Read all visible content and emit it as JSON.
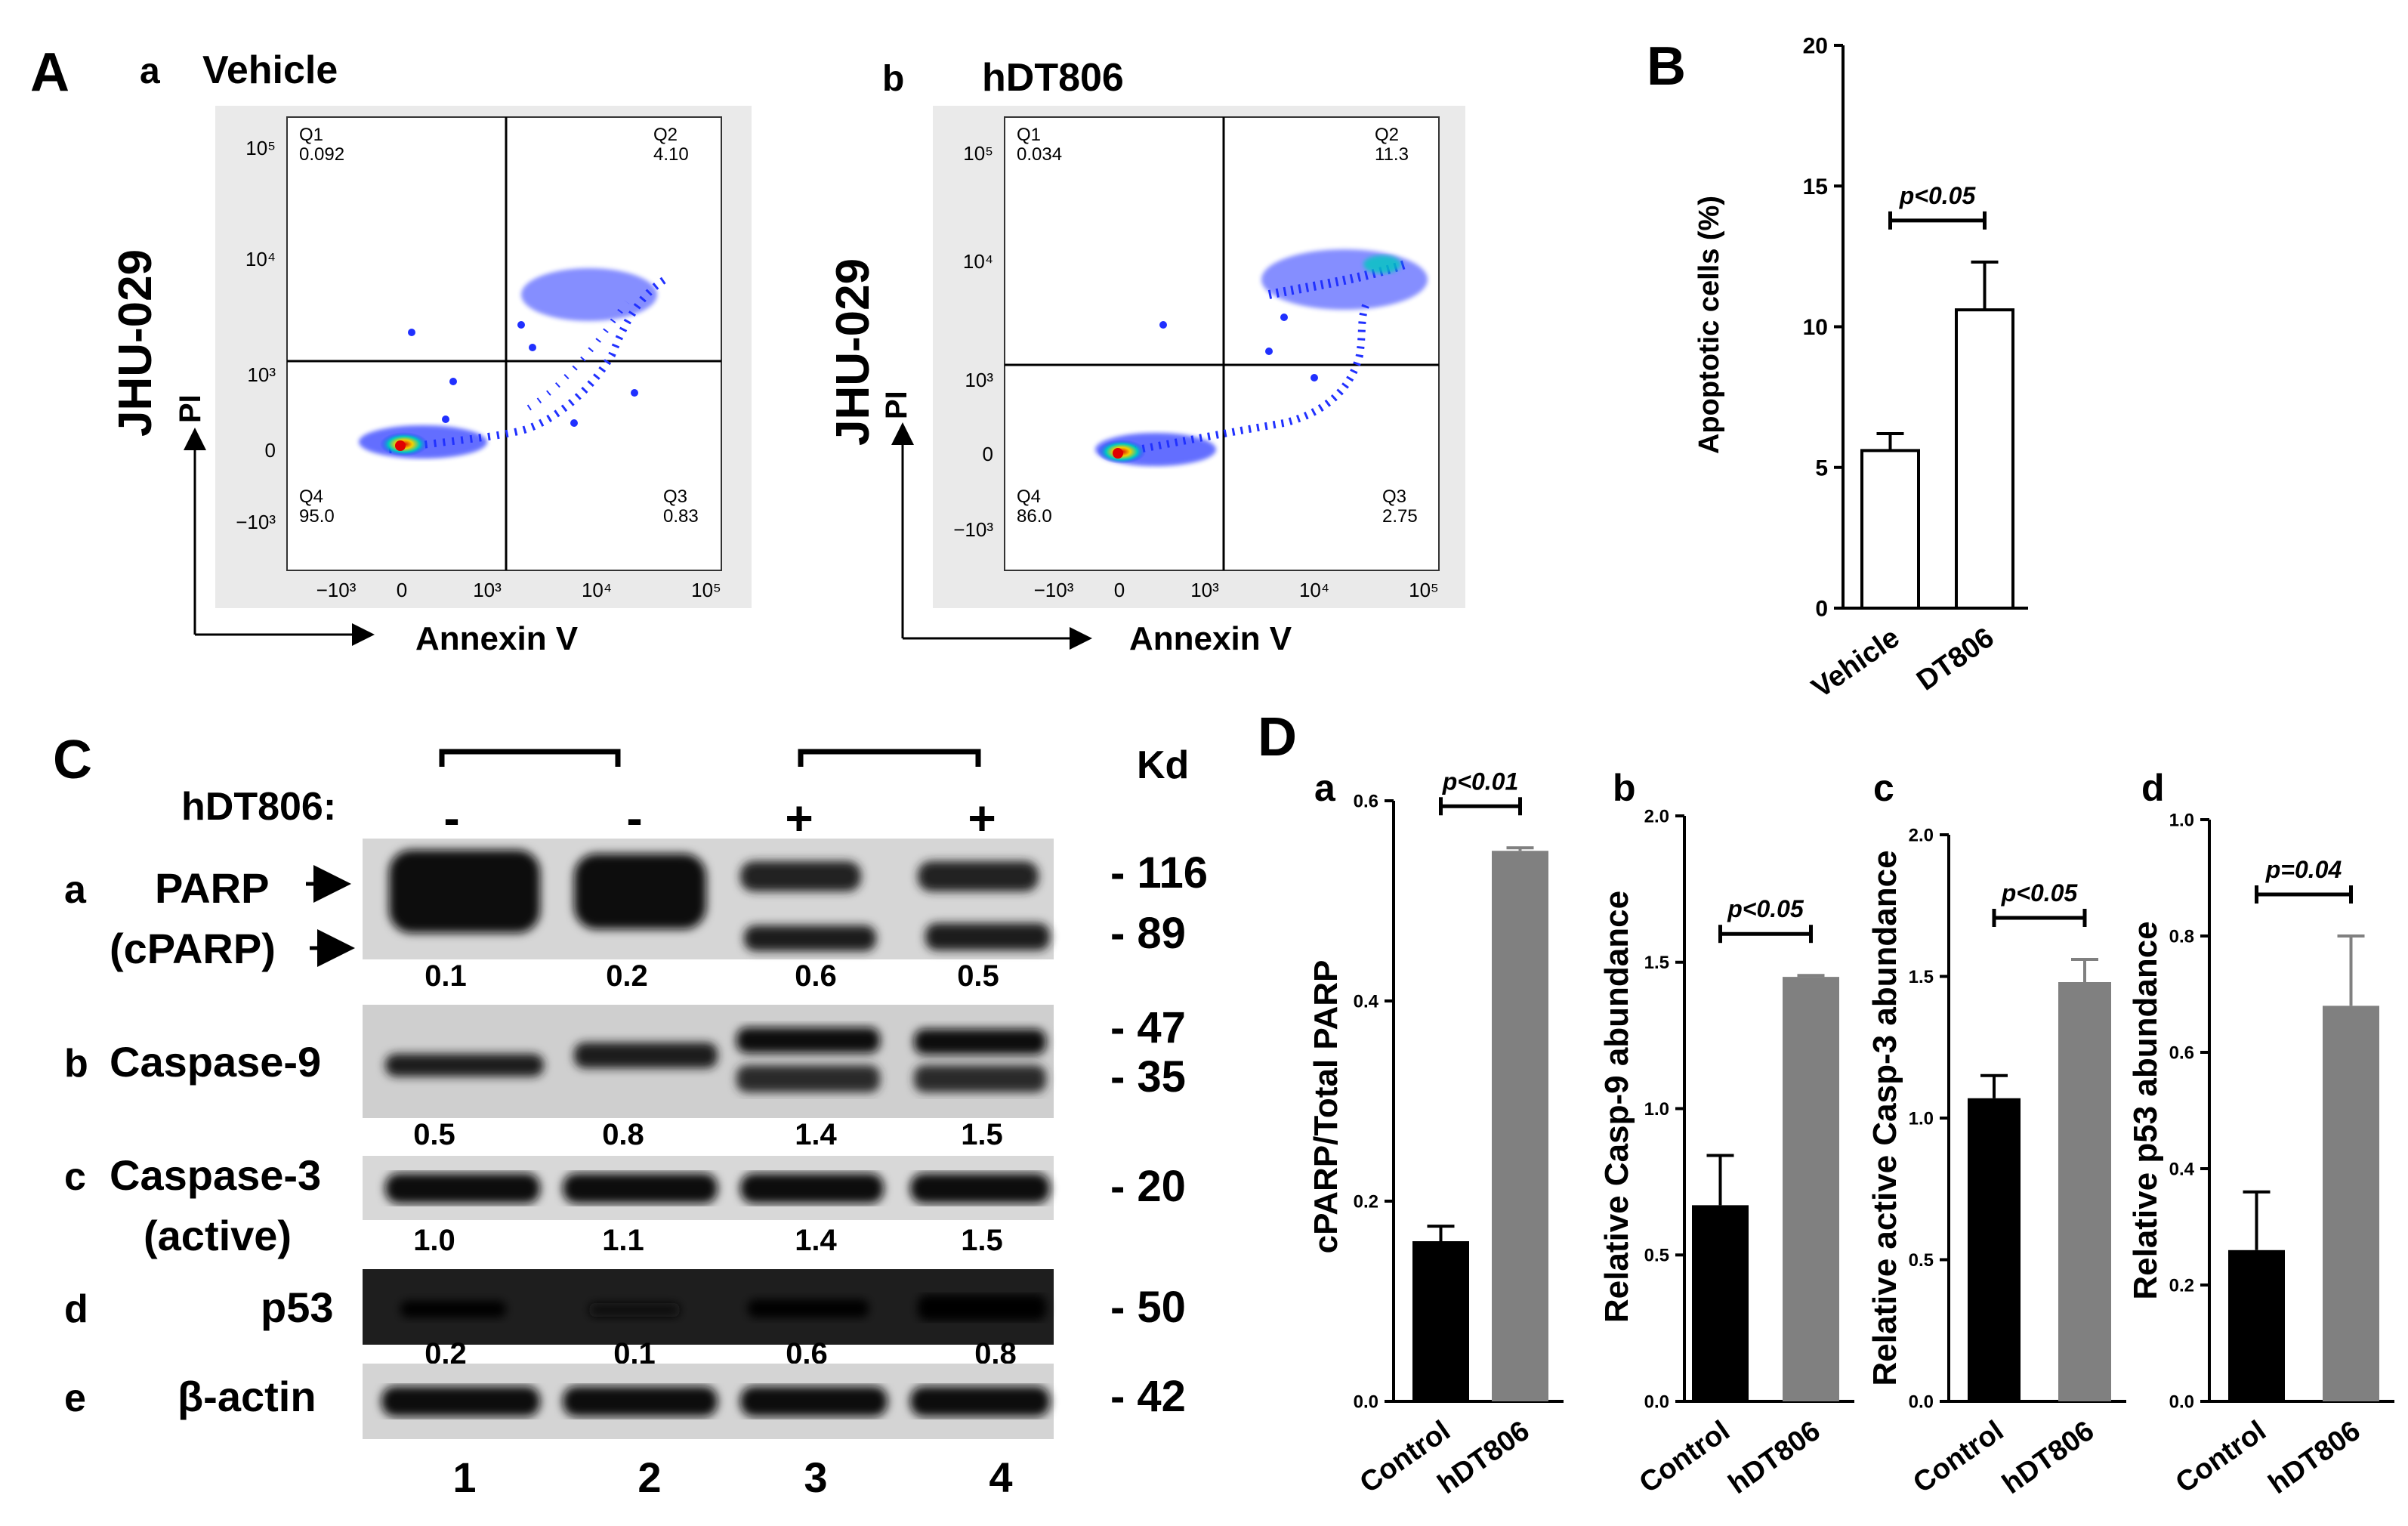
{
  "panel_labels": {
    "A": "A",
    "B": "B",
    "C": "C",
    "D": "D"
  },
  "panel_A": {
    "a": {
      "sub_label": "a",
      "title": "Vehicle",
      "cell_line": "JHU-029",
      "y_axis": "PI",
      "x_axis": "Annexin V",
      "y_ticks": [
        "10⁵",
        "10⁴",
        "10³",
        "0",
        "−10³"
      ],
      "x_ticks": [
        "−10³",
        "0",
        "10³",
        "10⁴",
        "10⁵"
      ],
      "quadrants": [
        {
          "name": "Q1",
          "value": "0.092"
        },
        {
          "name": "Q2",
          "value": "4.10"
        },
        {
          "name": "Q3",
          "value": "0.83"
        },
        {
          "name": "Q4",
          "value": "95.0"
        }
      ]
    },
    "b": {
      "sub_label": "b",
      "title": "hDT806",
      "cell_line": "JHU-029",
      "y_axis": "PI",
      "x_axis": "Annexin V",
      "y_ticks": [
        "10⁵",
        "10⁴",
        "10³",
        "0",
        "−10³"
      ],
      "x_ticks": [
        "−10³",
        "0",
        "10³",
        "10⁴",
        "10⁵"
      ],
      "quadrants": [
        {
          "name": "Q1",
          "value": "0.034"
        },
        {
          "name": "Q2",
          "value": "11.3"
        },
        {
          "name": "Q3",
          "value": "2.75"
        },
        {
          "name": "Q4",
          "value": "86.0"
        }
      ]
    }
  },
  "panel_C": {
    "treatment_label": "hDT806:",
    "treatment_signs": [
      "-",
      "-",
      "+",
      "+"
    ],
    "kd_label": "Kd",
    "rows": [
      {
        "letter": "a",
        "names": [
          "PARP",
          "(cPARP)"
        ],
        "kd": [
          "- 116",
          "- 89"
        ],
        "values": [
          "0.1",
          "0.2",
          "0.6",
          "0.5"
        ]
      },
      {
        "letter": "b",
        "names": [
          "Caspase-9"
        ],
        "kd": [
          "- 47",
          "- 35"
        ],
        "values": [
          "0.5",
          "0.8",
          "1.4",
          "1.5"
        ]
      },
      {
        "letter": "c",
        "names": [
          "Caspase-3",
          "(active)"
        ],
        "kd": [
          "- 20"
        ],
        "values": [
          "1.0",
          "1.1",
          "1.4",
          "1.5"
        ]
      },
      {
        "letter": "d",
        "names": [
          "p53"
        ],
        "kd": [
          "- 50"
        ],
        "values": [
          "0.2",
          "0.1",
          "0.6",
          "0.8"
        ]
      },
      {
        "letter": "e",
        "names": [
          "β-actin"
        ],
        "kd": [
          "- 42"
        ],
        "values": []
      }
    ],
    "lanes": [
      "1",
      "2",
      "3",
      "4"
    ]
  },
  "chart_data": [
    {
      "id": "B",
      "type": "bar",
      "categories": [
        "Vehicle",
        "DT806"
      ],
      "values": [
        5.6,
        10.6
      ],
      "errors": [
        0.6,
        1.7
      ],
      "ylabel": "Apoptotic cells (%)",
      "ylim": [
        0,
        20
      ],
      "yticks": [
        "0",
        "5",
        "10",
        "15",
        "20"
      ],
      "annotation": "p<0.05",
      "bar_colors": [
        "#ffffff",
        "#ffffff"
      ]
    },
    {
      "id": "D-a",
      "sub_label": "a",
      "type": "bar",
      "categories": [
        "Control",
        "hDT806"
      ],
      "values": [
        0.16,
        0.55
      ],
      "errors": [
        0.015,
        0.003
      ],
      "ylabel": "cPARP/Total PARP",
      "ylim": [
        0,
        0.6
      ],
      "yticks": [
        "0.0",
        "0.2",
        "0.4",
        "0.6"
      ],
      "annotation": "p<0.01",
      "bar_colors": [
        "#000000",
        "#808080"
      ]
    },
    {
      "id": "D-b",
      "sub_label": "b",
      "type": "bar",
      "categories": [
        "Control",
        "hDT806"
      ],
      "values": [
        0.67,
        1.45
      ],
      "errors": [
        0.17,
        0.005
      ],
      "ylabel": "Relative Casp-9 abundance",
      "ylim": [
        0,
        2.0
      ],
      "yticks": [
        "0.0",
        "0.5",
        "1.0",
        "1.5",
        "2.0"
      ],
      "annotation": "p<0.05",
      "bar_colors": [
        "#000000",
        "#808080"
      ]
    },
    {
      "id": "D-c",
      "sub_label": "c",
      "type": "bar",
      "categories": [
        "Control",
        "hDT806"
      ],
      "values": [
        1.07,
        1.48
      ],
      "errors": [
        0.08,
        0.08
      ],
      "ylabel": "Relative active Casp-3 abundance",
      "ylim": [
        0,
        2.0
      ],
      "yticks": [
        "0.0",
        "0.5",
        "1.0",
        "1.5",
        "2.0"
      ],
      "annotation": "p<0.05",
      "bar_colors": [
        "#000000",
        "#808080"
      ]
    },
    {
      "id": "D-d",
      "sub_label": "d",
      "type": "bar",
      "categories": [
        "Control",
        "hDT806"
      ],
      "values": [
        0.26,
        0.68
      ],
      "errors": [
        0.1,
        0.12
      ],
      "ylabel": "Relative p53 abundance",
      "ylim": [
        0,
        1.0
      ],
      "yticks": [
        "0.0",
        "0.2",
        "0.4",
        "0.6",
        "0.8",
        "1.0"
      ],
      "annotation": "p=0.04",
      "bar_colors": [
        "#000000",
        "#808080"
      ]
    }
  ]
}
